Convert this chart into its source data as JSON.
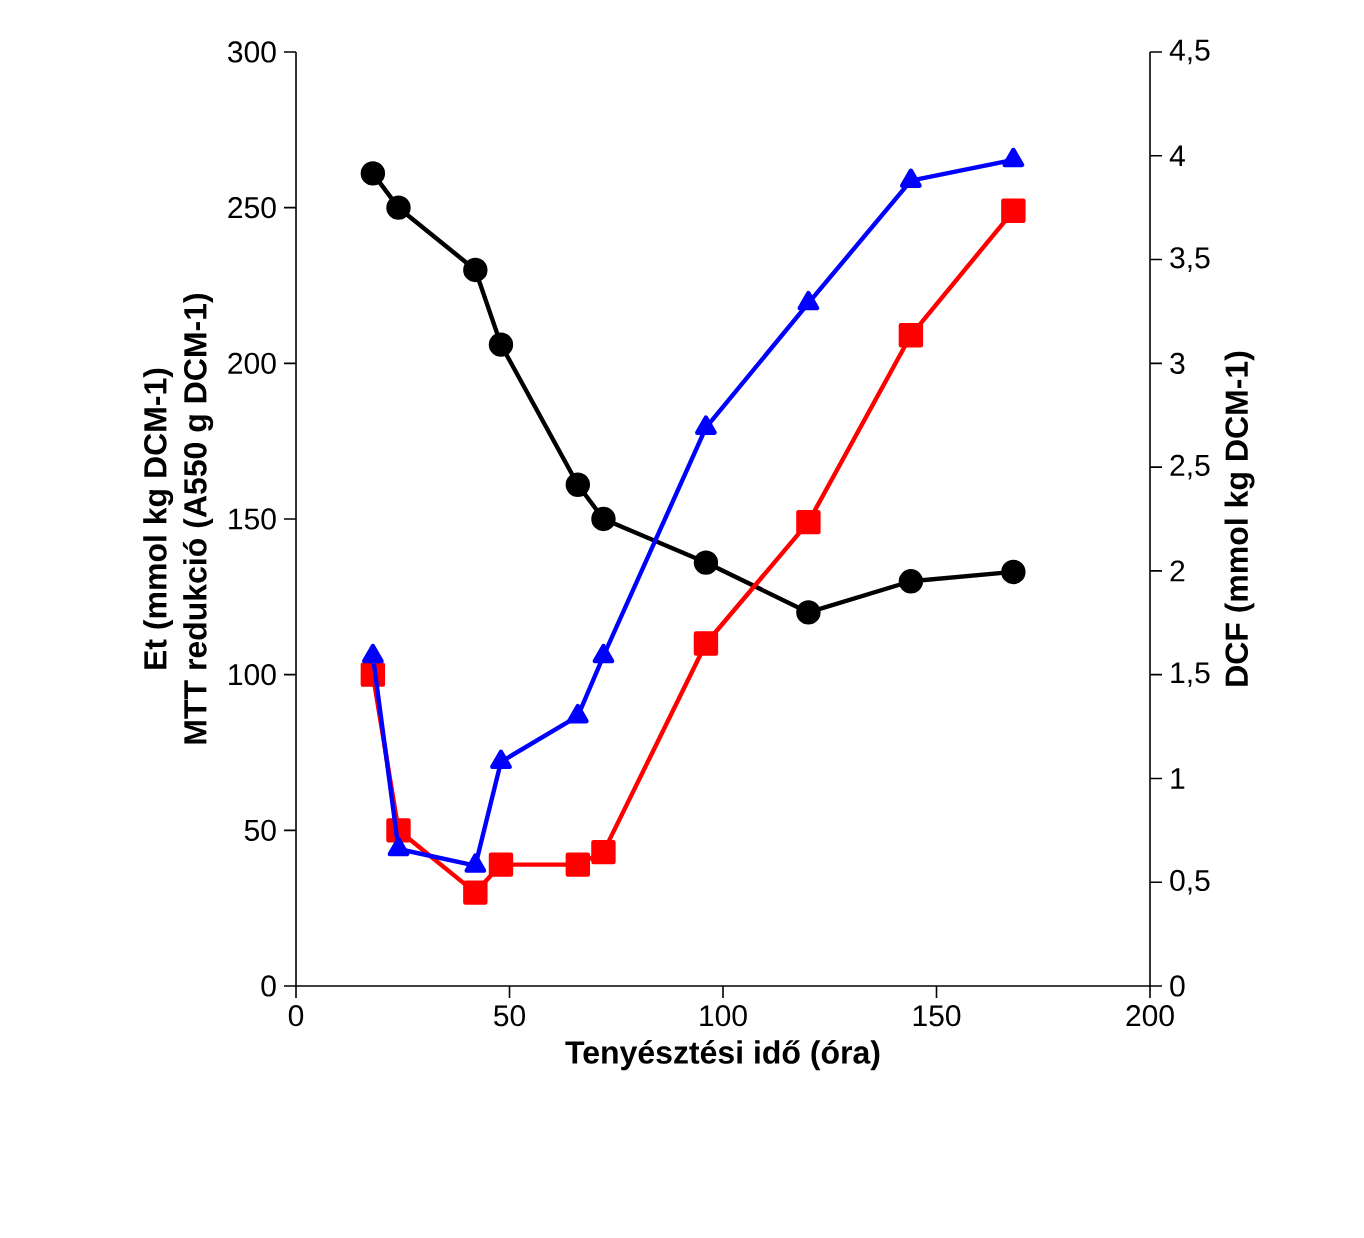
{
  "chart_data": {
    "type": "line",
    "xlabel": "Tenyésztési idő (óra)",
    "ylabel": [
      "Et (mmol kg DCM-1)",
      "MTT redukció (A550 g DCM-1)"
    ],
    "y2label": "DCF (mmol kg DCM-1)",
    "x": [
      18,
      24,
      42,
      48,
      66,
      72,
      96,
      120,
      144,
      168
    ],
    "xlim": [
      0,
      200
    ],
    "xticks": [
      0,
      50,
      100,
      150,
      200
    ],
    "ylim": [
      0,
      300
    ],
    "yticks": [
      0,
      50,
      100,
      150,
      200,
      250,
      300
    ],
    "y2lim": [
      0,
      4.5
    ],
    "y2ticks": [
      0,
      {
        "value": 0.5,
        "label": "0,5"
      },
      1,
      {
        "value": 1.5,
        "label": "1,5"
      },
      2,
      {
        "value": 2.5,
        "label": "2,5"
      },
      3,
      {
        "value": 3.5,
        "label": "3,5"
      },
      4,
      {
        "value": 4.5,
        "label": "4,5"
      }
    ],
    "series": [
      {
        "color": "#000000",
        "marker": "circle",
        "values": [
          261,
          250,
          230,
          206,
          161,
          150,
          136,
          120,
          130,
          133
        ]
      },
      {
        "color": "#ff0000",
        "marker": "square",
        "values": [
          100,
          50,
          30,
          39,
          39,
          43,
          110,
          149,
          209,
          249
        ]
      },
      {
        "color": "#0000ff",
        "marker": "triangle",
        "axis": "y2",
        "values": [
          1.59,
          0.66,
          0.58,
          1.08,
          1.3,
          1.59,
          2.69,
          3.29,
          3.88,
          3.98
        ]
      }
    ]
  }
}
